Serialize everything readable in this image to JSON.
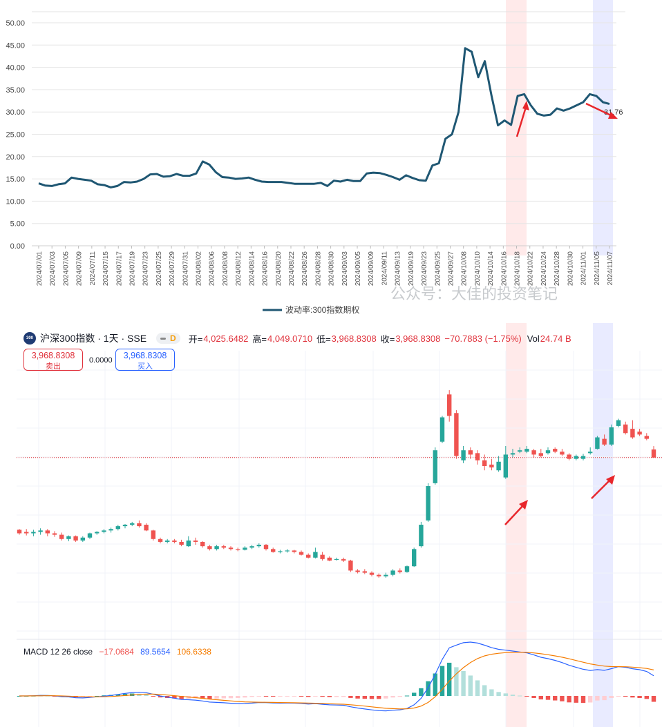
{
  "chart_data": [
    {
      "type": "line",
      "title": "",
      "legend": "波动率:300指数期权",
      "legend_position": "bottom",
      "ylim": [
        0,
        50
      ],
      "yticks": [
        "0.00",
        "5.00",
        "10.00",
        "15.00",
        "20.00",
        "25.00",
        "30.00",
        "35.00",
        "40.00",
        "45.00",
        "50.00"
      ],
      "xticks": [
        "2024/07/01",
        "2024/07/03",
        "2024/07/05",
        "2024/07/09",
        "2024/07/11",
        "2024/07/15",
        "2024/07/17",
        "2024/07/19",
        "2024/07/23",
        "2024/07/25",
        "2024/07/29",
        "2024/07/31",
        "2024/08/02",
        "2024/08/06",
        "2024/08/08",
        "2024/08/12",
        "2024/08/14",
        "2024/08/16",
        "2024/08/20",
        "2024/08/22",
        "2024/08/26",
        "2024/08/28",
        "2024/08/30",
        "2024/09/03",
        "2024/09/05",
        "2024/09/09",
        "2024/09/11",
        "2024/09/13",
        "2024/09/19",
        "2024/09/23",
        "2024/09/25",
        "2024/09/27",
        "2024/10/08",
        "2024/10/10",
        "2024/10/14",
        "2024/10/16",
        "2024/10/18",
        "2024/10/22",
        "2024/10/24",
        "2024/10/28",
        "2024/10/30",
        "2024/11/01",
        "2024/11/05",
        "2024/11/07"
      ],
      "series": [
        {
          "name": "波动率:300指数期权",
          "color": "#1f5773",
          "values": [
            14.0,
            13.5,
            13.4,
            13.8,
            14.0,
            15.3,
            15.0,
            14.8,
            14.6,
            13.8,
            13.6,
            13.1,
            13.4,
            14.3,
            14.2,
            14.4,
            15.0,
            16.0,
            16.1,
            15.5,
            15.6,
            16.1,
            15.7,
            15.7,
            16.2,
            18.9,
            18.2,
            16.5,
            15.4,
            15.3,
            15.0,
            15.1,
            15.3,
            14.8,
            14.4,
            14.3,
            14.3,
            14.3,
            14.1,
            13.9,
            13.9,
            13.9,
            13.9,
            14.1,
            13.4,
            14.6,
            14.4,
            14.8,
            14.5,
            14.5,
            16.2,
            16.4,
            16.3,
            15.9,
            15.4,
            14.8,
            15.8,
            15.2,
            14.7,
            14.6,
            18.0,
            18.5,
            24.0,
            25.0,
            30.0,
            44.3,
            43.5,
            37.8,
            41.4,
            33.8,
            27.0,
            28.1,
            27.1,
            33.6,
            34.0,
            31.5,
            29.6,
            29.2,
            29.4,
            30.8,
            30.3,
            30.8,
            31.5,
            32.2,
            34.0,
            33.6,
            32.2,
            31.8
          ]
        }
      ],
      "annotations": [
        {
          "text": "31.76"
        },
        {
          "text": "公众号：大佳的投资笔记"
        }
      ],
      "highlight_bands": [
        {
          "color": "#ff5a5a"
        },
        {
          "color": "#6b7bff"
        }
      ]
    },
    {
      "type": "candlestick",
      "title": "沪深300指数 · 1天 · SSE",
      "up_color": "#26a69a",
      "down_color": "#ef5350",
      "candles": [
        [
          3465,
          3440,
          3470,
          3430
        ],
        [
          3450,
          3440,
          3470,
          3425
        ],
        [
          3440,
          3450,
          3465,
          3420
        ],
        [
          3450,
          3460,
          3475,
          3430
        ],
        [
          3460,
          3440,
          3470,
          3420
        ],
        [
          3440,
          3430,
          3455,
          3415
        ],
        [
          3430,
          3400,
          3445,
          3390
        ],
        [
          3400,
          3420,
          3425,
          3385
        ],
        [
          3420,
          3390,
          3425,
          3380
        ],
        [
          3390,
          3410,
          3420,
          3380
        ],
        [
          3410,
          3440,
          3445,
          3400
        ],
        [
          3440,
          3450,
          3455,
          3430
        ],
        [
          3450,
          3460,
          3470,
          3440
        ],
        [
          3460,
          3470,
          3480,
          3445
        ],
        [
          3470,
          3490,
          3500,
          3460
        ],
        [
          3490,
          3500,
          3505,
          3475
        ],
        [
          3500,
          3510,
          3520,
          3490
        ],
        [
          3510,
          3490,
          3530,
          3480
        ],
        [
          3500,
          3460,
          3510,
          3455
        ],
        [
          3460,
          3400,
          3465,
          3390
        ],
        [
          3400,
          3380,
          3410,
          3370
        ],
        [
          3380,
          3390,
          3400,
          3370
        ],
        [
          3390,
          3380,
          3400,
          3370
        ],
        [
          3380,
          3360,
          3395,
          3350
        ],
        [
          3350,
          3390,
          3420,
          3345
        ],
        [
          3390,
          3380,
          3410,
          3360
        ],
        [
          3380,
          3350,
          3385,
          3340
        ],
        [
          3350,
          3330,
          3360,
          3320
        ],
        [
          3330,
          3350,
          3360,
          3320
        ],
        [
          3350,
          3340,
          3360,
          3330
        ],
        [
          3340,
          3330,
          3350,
          3320
        ],
        [
          3330,
          3325,
          3340,
          3315
        ],
        [
          3325,
          3340,
          3350,
          3320
        ],
        [
          3340,
          3350,
          3360,
          3330
        ],
        [
          3350,
          3360,
          3370,
          3340
        ],
        [
          3360,
          3330,
          3365,
          3320
        ],
        [
          3330,
          3310,
          3340,
          3305
        ],
        [
          3310,
          3315,
          3325,
          3300
        ],
        [
          3315,
          3320,
          3330,
          3305
        ],
        [
          3320,
          3310,
          3325,
          3300
        ],
        [
          3310,
          3290,
          3320,
          3285
        ],
        [
          3290,
          3270,
          3300,
          3265
        ],
        [
          3270,
          3310,
          3340,
          3265
        ],
        [
          3290,
          3260,
          3310,
          3250
        ],
        [
          3270,
          3250,
          3280,
          3245
        ],
        [
          3260,
          3260,
          3270,
          3250
        ],
        [
          3260,
          3250,
          3270,
          3240
        ],
        [
          3250,
          3180,
          3255,
          3170
        ],
        [
          3180,
          3170,
          3190,
          3160
        ],
        [
          3175,
          3165,
          3190,
          3155
        ],
        [
          3165,
          3150,
          3175,
          3140
        ],
        [
          3150,
          3140,
          3160,
          3130
        ],
        [
          3140,
          3150,
          3165,
          3130
        ],
        [
          3150,
          3180,
          3190,
          3140
        ],
        [
          3180,
          3170,
          3195,
          3160
        ],
        [
          3170,
          3210,
          3215,
          3165
        ],
        [
          3210,
          3330,
          3340,
          3205
        ],
        [
          3350,
          3500,
          3520,
          3340
        ],
        [
          3530,
          3770,
          3790,
          3520
        ],
        [
          3790,
          4020,
          4040,
          3780
        ],
        [
          4080,
          4250,
          4260,
          4070
        ],
        [
          4410,
          4260,
          4440,
          4220
        ],
        [
          4280,
          3980,
          4300,
          3960
        ],
        [
          3950,
          4020,
          4050,
          3930
        ],
        [
          4020,
          3990,
          4040,
          3960
        ],
        [
          4000,
          3950,
          4020,
          3920
        ],
        [
          3950,
          3910,
          3990,
          3880
        ],
        [
          3920,
          3900,
          3960,
          3880
        ],
        [
          3880,
          3940,
          3980,
          3870
        ],
        [
          3830,
          3990,
          4050,
          3820
        ],
        [
          3990,
          4000,
          4030,
          3970
        ],
        [
          4010,
          4020,
          4040,
          4000
        ],
        [
          4010,
          4030,
          4050,
          4000
        ],
        [
          4020,
          3990,
          4030,
          3970
        ],
        [
          4000,
          3980,
          4030,
          3970
        ],
        [
          4000,
          4020,
          4040,
          3990
        ],
        [
          4030,
          4010,
          4040,
          4000
        ],
        [
          4010,
          3990,
          4030,
          3980
        ],
        [
          3990,
          3960,
          4000,
          3950
        ],
        [
          3960,
          3980,
          3990,
          3950
        ],
        [
          3960,
          3980,
          3995,
          3950
        ],
        [
          4000,
          4010,
          4040,
          3990
        ],
        [
          4030,
          4110,
          4120,
          4025
        ],
        [
          4100,
          4060,
          4130,
          4050
        ],
        [
          4060,
          4180,
          4200,
          4050
        ],
        [
          4190,
          4230,
          4240,
          4180
        ],
        [
          4200,
          4140,
          4220,
          4130
        ],
        [
          4170,
          4110,
          4230,
          4100
        ],
        [
          4150,
          4130,
          4170,
          4120
        ],
        [
          4120,
          4100,
          4140,
          4090
        ],
        [
          4025.6482,
          3968.8308,
          4049.071,
          3968.8308
        ]
      ],
      "last_price_line": true,
      "header": {
        "open_label": "开=",
        "open": "4,025.6482",
        "high_label": "高=",
        "high": "4,049.0710",
        "low_label": "低=",
        "low": "3,968.8308",
        "close_label": "收=",
        "close": "3,968.8308",
        "change": "−70.7883 (−1.75%)",
        "vol_label": "Vol",
        "vol": "24.74 B"
      },
      "sell": {
        "price": "3,968.8308",
        "label": "卖出"
      },
      "buy": {
        "price": "3,968.8308",
        "label": "买入"
      },
      "spread": "0.0000",
      "logo_text": "300",
      "interval_badge": "D"
    },
    {
      "type": "macd",
      "title": "MACD 12 26 close",
      "values_shown": [
        "−17.0684",
        "89.5654",
        "106.6338"
      ],
      "colors": {
        "hist": "#ef5350",
        "macd": "#2962ff",
        "signal": "#f57c00"
      }
    }
  ]
}
